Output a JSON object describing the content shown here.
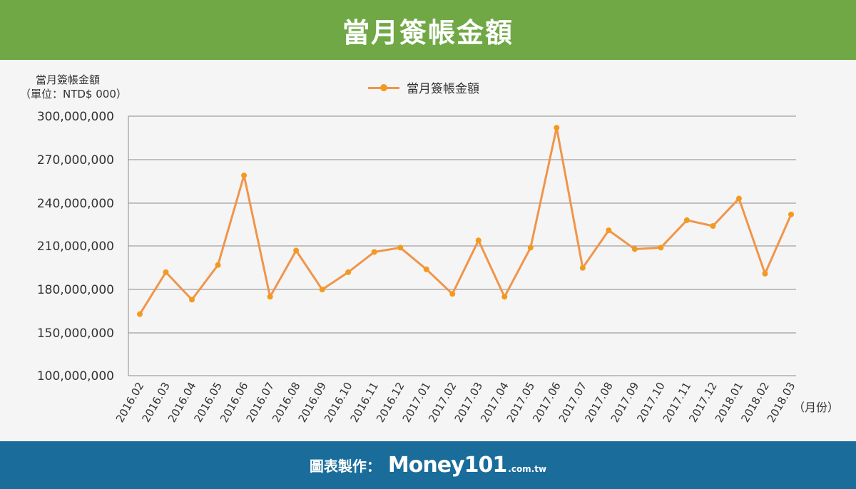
{
  "header": {
    "title": "當月簽帳金額"
  },
  "axis_unit": {
    "line1": "當月簽帳金額",
    "line2": "（單位：NTD$ 000）"
  },
  "x_unit": "（月份）",
  "footer": {
    "label": "圖表製作：",
    "brand": "Money101",
    "domain": ".com.tw"
  },
  "colors": {
    "header": "#6fa845",
    "footer": "#1a6d9b",
    "line": "#f0954a",
    "marker": "#f39a1e"
  },
  "chart_data": {
    "type": "line",
    "title": "",
    "xlabel": "（月份）",
    "ylabel": "當月簽帳金額（單位：NTD$ 000）",
    "grid": true,
    "legend": "top-center",
    "y_ticks": [
      100000000,
      150000000,
      180000000,
      210000000,
      240000000,
      270000000,
      300000000
    ],
    "y_tick_labels": [
      "100,000,000",
      "150,000,000",
      "180,000,000",
      "210,000,000",
      "240,000,000",
      "270,000,000",
      "300,000,000"
    ],
    "categories": [
      "2016.02",
      "2016.03",
      "2016.04",
      "2016.05",
      "2016.06",
      "2016.07",
      "2016.08",
      "2016.09",
      "2016.10",
      "2016.11",
      "2016.12",
      "2017.01",
      "2017.02",
      "2017.03",
      "2017.04",
      "2017.05",
      "2017.06",
      "2017.07",
      "2017.08",
      "2017.09",
      "2017.10",
      "2017.11",
      "2017.12",
      "2018.01",
      "2018.02",
      "2018.03"
    ],
    "series": [
      {
        "name": "當月簽帳金額",
        "values": [
          163000000,
          192000000,
          173000000,
          197000000,
          259000000,
          175000000,
          207000000,
          180000000,
          192000000,
          206000000,
          209000000,
          194000000,
          177000000,
          214000000,
          175000000,
          209000000,
          292000000,
          195000000,
          221000000,
          208000000,
          209000000,
          228000000,
          224000000,
          243000000,
          191000000,
          232000000
        ]
      }
    ]
  }
}
